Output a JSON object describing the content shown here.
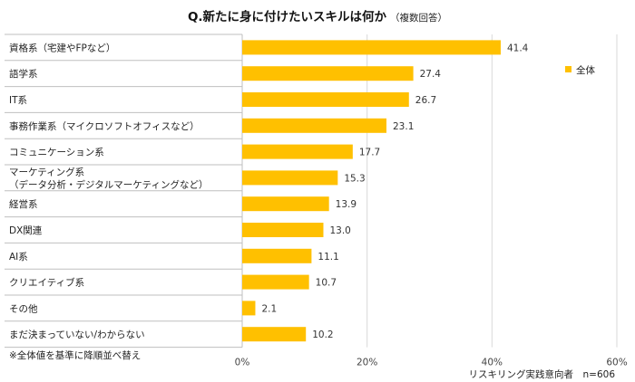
{
  "chart_data": {
    "type": "bar",
    "orientation": "horizontal",
    "title": "Q.新たに身に付けたいスキルは何か",
    "subtitle": "（複数回答）",
    "categories": [
      [
        "資格系（宅建やFPなど）"
      ],
      [
        "語学系"
      ],
      [
        "IT系"
      ],
      [
        "事務作業系（マイクロソフトオフィスなど）"
      ],
      [
        "コミュニケーション系"
      ],
      [
        "マーケティング系",
        "（データ分析・デジタルマーケティングなど）"
      ],
      [
        "経営系"
      ],
      [
        "DX関連"
      ],
      [
        "AI系"
      ],
      [
        "クリエイティブ系"
      ],
      [
        "その他"
      ],
      [
        "まだ決まっていない/わからない"
      ]
    ],
    "series": [
      {
        "name": "全体",
        "values": [
          41.4,
          27.4,
          26.7,
          23.1,
          17.7,
          15.3,
          13.9,
          13.0,
          11.1,
          10.7,
          2.1,
          10.2
        ]
      }
    ],
    "xlim": [
      0,
      60
    ],
    "xticks": [
      "0%",
      "20%",
      "40%",
      "60%"
    ],
    "grid": true,
    "legend": "top-right",
    "colors": {
      "bar": "#FFC000",
      "grid": "#d9d9d9",
      "axis": "#bfbfbf"
    }
  },
  "note": "※全体値を基準に降順並べ替え",
  "sample": "リスキリング実践意向者　n=606"
}
